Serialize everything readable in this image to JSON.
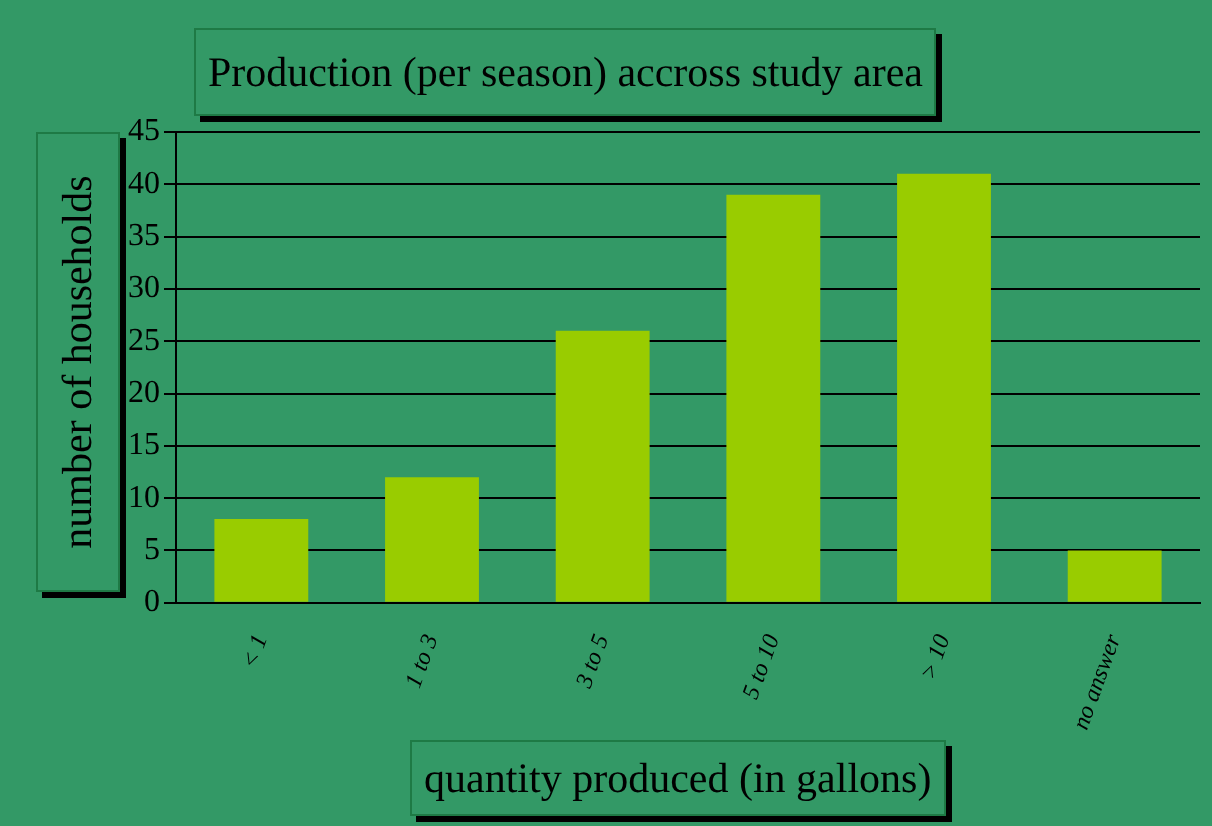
{
  "chart_data": {
    "type": "bar",
    "title": "Production (per season) accross study area",
    "xlabel": "quantity produced (in gallons)",
    "ylabel": "number of households",
    "categories": [
      "< 1",
      "1 to 3",
      "3 to 5",
      "5 to 10",
      "> 10",
      "no answer"
    ],
    "values": [
      8,
      12,
      26,
      39,
      41,
      5
    ],
    "color": "#99cc00",
    "ylim": [
      0,
      45
    ],
    "yticks": [
      0,
      5,
      10,
      15,
      20,
      25,
      30,
      35,
      40,
      45
    ],
    "grid": "y",
    "legend": false
  }
}
